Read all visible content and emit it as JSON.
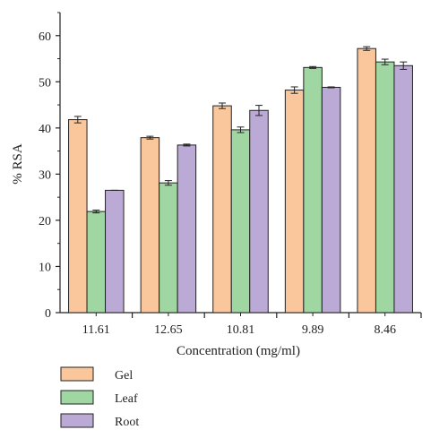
{
  "chart_data": {
    "type": "bar",
    "categories": [
      "11.61",
      "12.65",
      "10.81",
      "9.89",
      "8.46"
    ],
    "series": [
      {
        "name": "Gel",
        "color": "#f9c79b",
        "values": [
          41.8,
          37.9,
          44.8,
          48.2,
          57.2
        ],
        "errors": [
          0.7,
          0.3,
          0.6,
          0.7,
          0.4
        ]
      },
      {
        "name": "Leaf",
        "color": "#9fd6a1",
        "values": [
          21.9,
          28.1,
          39.6,
          53.1,
          54.3
        ],
        "errors": [
          0.3,
          0.5,
          0.6,
          0.2,
          0.6
        ]
      },
      {
        "name": "Root",
        "color": "#bcaad6",
        "values": [
          26.5,
          36.3,
          43.8,
          48.8,
          53.5
        ],
        "errors": [
          0.0,
          0.2,
          1.1,
          0.1,
          0.8
        ]
      }
    ],
    "xlabel": "Concentration (mg/ml)",
    "ylabel": "% RSA",
    "ylim": [
      0,
      65
    ],
    "yticks": [
      0,
      10,
      20,
      30,
      40,
      50,
      60
    ],
    "grid": false,
    "legend_position": "bottom-left"
  }
}
